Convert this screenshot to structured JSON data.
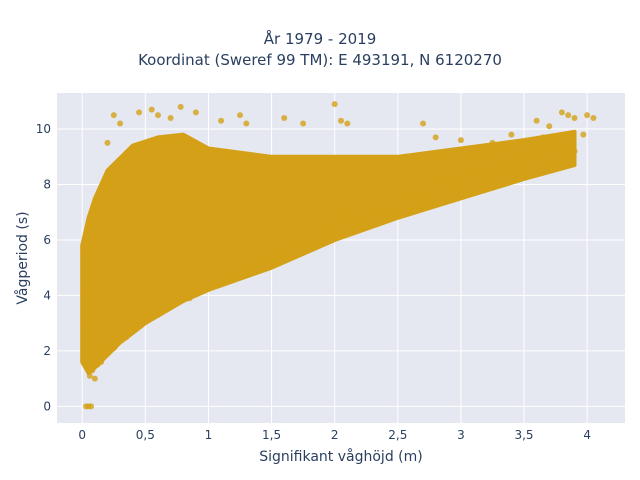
{
  "chart_data": {
    "type": "scatter",
    "title_line1": "År 1979 - 2019",
    "title_line2": "Koordinat (Sweref 99 TM): E 493191, N 6120270",
    "xlabel": "Signifikant våghöjd (m)",
    "ylabel": "Vågperiod (s)",
    "xlim": [
      -0.2,
      4.3
    ],
    "ylim": [
      -0.6,
      11.3
    ],
    "x_ticks": [
      0,
      0.5,
      1,
      1.5,
      2,
      2.5,
      3,
      3.5,
      4
    ],
    "x_tick_labels": [
      "0",
      "0,5",
      "1",
      "1,5",
      "2",
      "2,5",
      "3",
      "3,5",
      "4"
    ],
    "y_ticks": [
      0,
      2,
      4,
      6,
      8,
      10
    ],
    "y_tick_labels": [
      "0",
      "2",
      "4",
      "6",
      "8",
      "10"
    ],
    "grid": true,
    "series": [
      {
        "color": "#d4a017",
        "dense_band": {
          "lower": [
            [
              0.0,
              1.6
            ],
            [
              0.05,
              1.2
            ],
            [
              0.1,
              1.4
            ],
            [
              0.3,
              2.3
            ],
            [
              0.5,
              3.0
            ],
            [
              0.8,
              3.8
            ],
            [
              1.0,
              4.2
            ],
            [
              1.5,
              5.0
            ],
            [
              2.0,
              6.0
            ],
            [
              2.5,
              6.8
            ],
            [
              3.0,
              7.5
            ],
            [
              3.5,
              8.2
            ],
            [
              3.9,
              8.7
            ]
          ],
          "upper": [
            [
              0.0,
              5.8
            ],
            [
              0.05,
              6.8
            ],
            [
              0.1,
              7.5
            ],
            [
              0.2,
              8.5
            ],
            [
              0.4,
              9.4
            ],
            [
              0.6,
              9.7
            ],
            [
              0.8,
              9.8
            ],
            [
              1.0,
              9.3
            ],
            [
              1.5,
              9.0
            ],
            [
              2.0,
              9.0
            ],
            [
              2.5,
              9.0
            ],
            [
              3.0,
              9.3
            ],
            [
              3.5,
              9.6
            ],
            [
              3.9,
              9.9
            ]
          ]
        },
        "points": [
          [
            0.05,
            0
          ],
          [
            0.07,
            0
          ],
          [
            0.03,
            0
          ],
          [
            0.1,
            1.0
          ],
          [
            0.12,
            1.5
          ],
          [
            0.2,
            9.5
          ],
          [
            0.3,
            10.2
          ],
          [
            0.25,
            10.5
          ],
          [
            0.45,
            10.6
          ],
          [
            0.55,
            10.7
          ],
          [
            0.6,
            10.5
          ],
          [
            0.7,
            10.4
          ],
          [
            0.78,
            10.8
          ],
          [
            0.9,
            10.6
          ],
          [
            1.1,
            10.3
          ],
          [
            1.25,
            10.5
          ],
          [
            1.3,
            10.2
          ],
          [
            1.6,
            10.4
          ],
          [
            1.75,
            10.2
          ],
          [
            2.0,
            10.9
          ],
          [
            2.05,
            10.3
          ],
          [
            2.1,
            10.2
          ],
          [
            2.7,
            10.2
          ],
          [
            2.8,
            9.7
          ],
          [
            3.0,
            9.6
          ],
          [
            3.25,
            9.5
          ],
          [
            3.4,
            9.8
          ],
          [
            3.6,
            10.3
          ],
          [
            3.7,
            10.1
          ],
          [
            3.85,
            10.5
          ],
          [
            3.9,
            10.4
          ],
          [
            3.8,
            10.6
          ],
          [
            4.0,
            10.5
          ],
          [
            4.05,
            10.4
          ],
          [
            3.97,
            9.8
          ],
          [
            3.75,
            9.3
          ],
          [
            3.6,
            9.1
          ],
          [
            3.5,
            8.9
          ],
          [
            3.3,
            8.6
          ],
          [
            3.1,
            8.4
          ],
          [
            2.9,
            8.1
          ],
          [
            2.6,
            7.6
          ],
          [
            2.3,
            7.1
          ],
          [
            2.1,
            6.9
          ],
          [
            1.9,
            6.4
          ],
          [
            1.7,
            5.9
          ],
          [
            1.4,
            5.3
          ],
          [
            1.2,
            4.7
          ],
          [
            0.9,
            4.1
          ],
          [
            0.7,
            3.6
          ],
          [
            0.4,
            2.8
          ],
          [
            0.25,
            2.1
          ],
          [
            0.15,
            1.6
          ],
          [
            0.02,
            3.0
          ],
          [
            0.01,
            4.2
          ],
          [
            0.02,
            5.5
          ],
          [
            3.8,
            8.9
          ],
          [
            3.9,
            9.2
          ],
          [
            3.7,
            8.7
          ],
          [
            3.45,
            8.6
          ],
          [
            3.2,
            8.3
          ],
          [
            2.95,
            7.8
          ],
          [
            2.75,
            7.4
          ],
          [
            2.45,
            7.0
          ],
          [
            2.2,
            6.6
          ],
          [
            2.0,
            6.3
          ],
          [
            1.8,
            5.9
          ],
          [
            1.55,
            5.4
          ],
          [
            1.3,
            4.9
          ],
          [
            1.05,
            4.4
          ],
          [
            0.85,
            3.9
          ],
          [
            0.6,
            3.3
          ],
          [
            0.35,
            2.5
          ],
          [
            0.18,
            1.9
          ],
          [
            0.08,
            1.3
          ],
          [
            0.06,
            1.1
          ],
          [
            3.55,
            9.4
          ],
          [
            3.65,
            9.7
          ],
          [
            3.35,
            9.3
          ],
          [
            3.15,
            9.1
          ]
        ]
      }
    ]
  }
}
